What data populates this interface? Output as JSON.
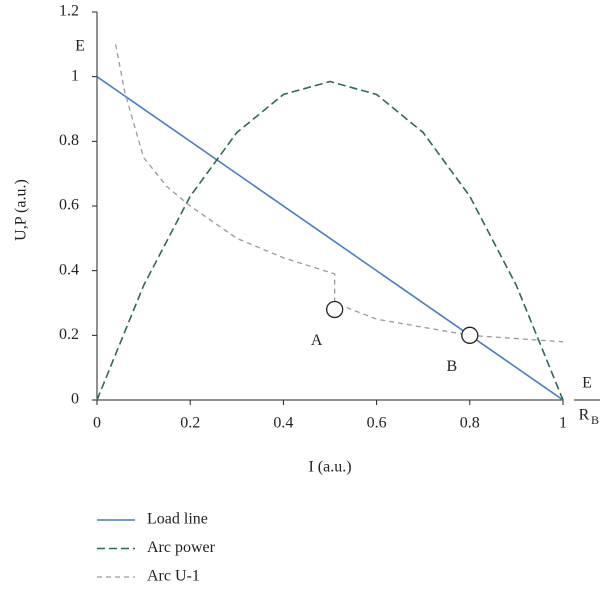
{
  "chart_data": {
    "type": "line",
    "xlabel": "I (a.u.)",
    "ylabel": "U,P (a.u.)",
    "xlim": [
      0,
      1
    ],
    "ylim": [
      0,
      1.2
    ],
    "xticks": [
      0,
      0.2,
      0.4,
      0.6,
      0.8,
      1
    ],
    "yticks": [
      0,
      0.2,
      0.4,
      0.6,
      0.8,
      1,
      1.2
    ],
    "grid": false,
    "series": [
      {
        "name": "Load line",
        "color": "#4a7cc4",
        "line_style": "solid",
        "x": [
          0,
          1
        ],
        "values": [
          1,
          0
        ]
      },
      {
        "name": "Arc power",
        "color": "#2f6b4f",
        "line_style": "dashed",
        "x": [
          0,
          0.1,
          0.2,
          0.3,
          0.4,
          0.5,
          0.6,
          0.7,
          0.8,
          0.9,
          1
        ],
        "values": [
          0,
          0.354,
          0.63,
          0.827,
          0.945,
          0.985,
          0.945,
          0.827,
          0.63,
          0.354,
          0
        ]
      },
      {
        "name": "Arc U-1",
        "color": "#9a9a9a",
        "line_style": "dashed",
        "x": [
          0.04,
          0.06,
          0.1,
          0.15,
          0.2,
          0.3,
          0.4,
          0.51,
          0.51,
          0.6,
          0.7,
          0.8,
          0.9,
          1
        ],
        "values": [
          1.1,
          0.95,
          0.75,
          0.66,
          0.6,
          0.5,
          0.44,
          0.39,
          0.3,
          0.25,
          0.225,
          0.2,
          0.19,
          0.18
        ]
      }
    ],
    "points": [
      {
        "label": "A",
        "x": 0.51,
        "y": 0.28
      },
      {
        "label": "B",
        "x": 0.8,
        "y": 0.2
      }
    ],
    "y_annotation": "E",
    "x_annotation": {
      "numerator": "E",
      "denominator": "R",
      "subscript": "B"
    }
  }
}
